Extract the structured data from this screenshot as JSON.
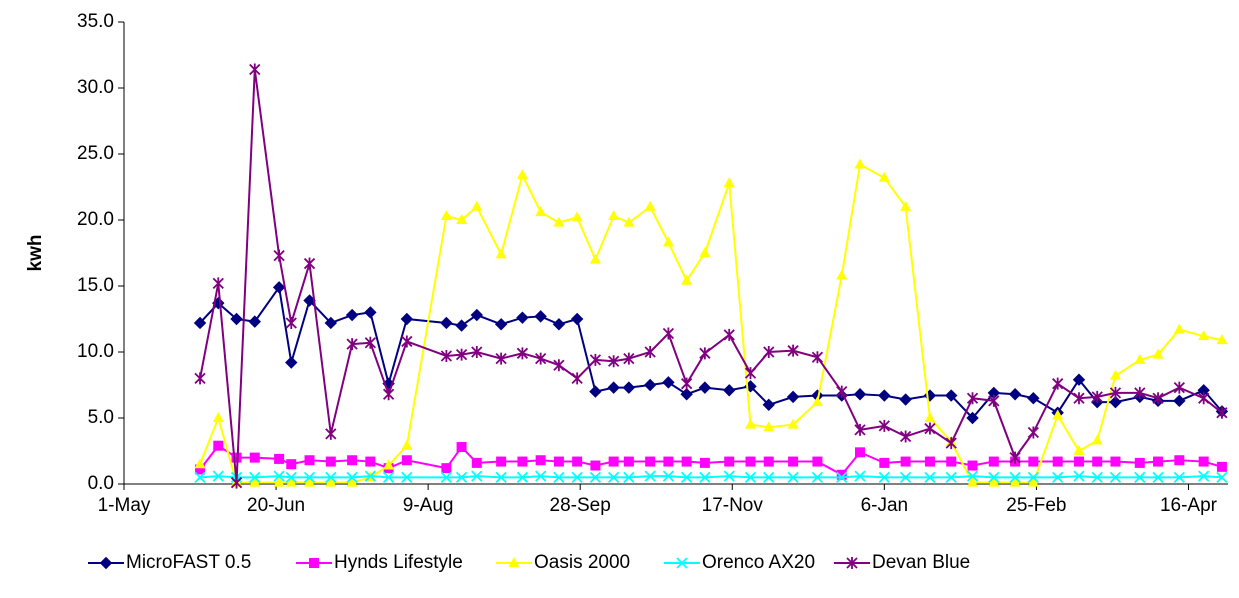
{
  "chart_data": {
    "type": "line",
    "y_label": "kwh",
    "x": [
      25,
      31,
      37,
      43,
      51,
      55,
      61,
      68,
      75,
      81,
      87,
      93,
      106,
      111,
      116,
      124,
      131,
      137,
      143,
      149,
      155,
      161,
      166,
      173,
      179,
      185,
      191,
      199,
      206,
      212,
      220,
      228,
      236,
      242,
      250,
      257,
      265,
      272,
      279,
      286,
      293,
      299,
      307,
      314,
      320,
      326,
      334,
      340,
      347,
      355,
      361
    ],
    "xlim": [
      0,
      363
    ],
    "xticks": [
      {
        "value": 0,
        "label": "1-May"
      },
      {
        "value": 50,
        "label": "20-Jun"
      },
      {
        "value": 100,
        "label": "9-Aug"
      },
      {
        "value": 150,
        "label": "28-Sep"
      },
      {
        "value": 200,
        "label": "17-Nov"
      },
      {
        "value": 250,
        "label": "6-Jan"
      },
      {
        "value": 300,
        "label": "25-Feb"
      },
      {
        "value": 350,
        "label": "16-Apr"
      }
    ],
    "ylim": [
      0,
      35
    ],
    "yticks": [
      {
        "value": 0,
        "label": "0.0"
      },
      {
        "value": 5,
        "label": "5.0"
      },
      {
        "value": 10,
        "label": "10.0"
      },
      {
        "value": 15,
        "label": "15.0"
      },
      {
        "value": 20,
        "label": "20.0"
      },
      {
        "value": 25,
        "label": "25.0"
      },
      {
        "value": 30,
        "label": "30.0"
      },
      {
        "value": 35,
        "label": "35.0"
      }
    ],
    "grid": false,
    "legend": "bottom",
    "series": [
      {
        "name": "MicroFAST 0.5",
        "color": "#000080",
        "marker": "diamond",
        "values": [
          12.2,
          13.7,
          12.5,
          12.3,
          14.9,
          9.2,
          13.9,
          12.2,
          12.8,
          13.0,
          7.6,
          12.5,
          12.2,
          12.0,
          12.8,
          12.1,
          12.6,
          12.7,
          12.1,
          12.5,
          7.0,
          7.3,
          7.3,
          7.5,
          7.7,
          6.8,
          7.3,
          7.1,
          7.4,
          6.0,
          6.6,
          6.7,
          6.7,
          6.8,
          6.7,
          6.4,
          6.7,
          6.7,
          5.0,
          6.9,
          6.8,
          6.5,
          5.4,
          7.9,
          6.2,
          6.2,
          6.6,
          6.3,
          6.3,
          7.1,
          5.5
        ]
      },
      {
        "name": "Hynds Lifestyle",
        "color": "#ff00ff",
        "marker": "square",
        "values": [
          1.1,
          2.9,
          2.0,
          2.0,
          1.9,
          1.5,
          1.8,
          1.7,
          1.8,
          1.7,
          1.2,
          1.8,
          1.2,
          2.8,
          1.6,
          1.7,
          1.7,
          1.8,
          1.7,
          1.7,
          1.4,
          1.7,
          1.7,
          1.7,
          1.7,
          1.7,
          1.6,
          1.7,
          1.7,
          1.7,
          1.7,
          1.7,
          0.7,
          2.4,
          1.6,
          1.7,
          1.7,
          1.7,
          1.4,
          1.7,
          1.7,
          1.7,
          1.7,
          1.7,
          1.7,
          1.7,
          1.6,
          1.7,
          1.8,
          1.7,
          1.3
        ]
      },
      {
        "name": "Oasis 2000",
        "color": "#ffff00",
        "marker": "triangle",
        "values": [
          1.5,
          5.0,
          0.1,
          0.1,
          0.1,
          0.1,
          0.1,
          0.1,
          0.1,
          0.5,
          1.4,
          2.9,
          20.3,
          20.0,
          21.0,
          17.4,
          23.4,
          20.6,
          19.8,
          20.2,
          17.0,
          20.3,
          19.8,
          21.0,
          18.3,
          15.4,
          17.5,
          22.8,
          4.5,
          4.3,
          4.5,
          6.2,
          15.8,
          24.2,
          23.2,
          21.0,
          5.0,
          3.2,
          0.1,
          0.1,
          0.1,
          0.1,
          5.2,
          2.5,
          3.3,
          8.2,
          9.4,
          9.8,
          11.7,
          11.2,
          10.9
        ]
      },
      {
        "name": "Orenco AX20",
        "color": "#00ffff",
        "marker": "x",
        "values": [
          0.5,
          0.6,
          0.5,
          0.5,
          0.6,
          0.5,
          0.5,
          0.5,
          0.5,
          0.6,
          0.5,
          0.5,
          0.5,
          0.5,
          0.6,
          0.5,
          0.5,
          0.6,
          0.5,
          0.5,
          0.5,
          0.5,
          0.5,
          0.6,
          0.6,
          0.5,
          0.5,
          0.6,
          0.5,
          0.5,
          0.5,
          0.5,
          0.5,
          0.6,
          0.5,
          0.5,
          0.5,
          0.5,
          0.6,
          0.5,
          0.5,
          0.5,
          0.5,
          0.6,
          0.5,
          0.5,
          0.5,
          0.5,
          0.5,
          0.6,
          0.5
        ]
      },
      {
        "name": "Devan Blue",
        "color": "#800080",
        "marker": "star",
        "values": [
          8.0,
          15.2,
          0.1,
          31.4,
          17.3,
          12.2,
          16.7,
          3.8,
          10.6,
          10.7,
          6.8,
          10.8,
          9.7,
          9.8,
          10.0,
          9.5,
          9.9,
          9.5,
          9.0,
          8.0,
          9.4,
          9.3,
          9.5,
          10.0,
          11.4,
          7.6,
          9.9,
          11.3,
          8.4,
          10.0,
          10.1,
          9.6,
          7.0,
          4.1,
          4.4,
          3.6,
          4.2,
          3.1,
          6.5,
          6.3,
          2.0,
          3.9,
          7.6,
          6.5,
          6.6,
          6.9,
          6.9,
          6.5,
          7.3,
          6.5,
          5.4
        ]
      }
    ]
  }
}
